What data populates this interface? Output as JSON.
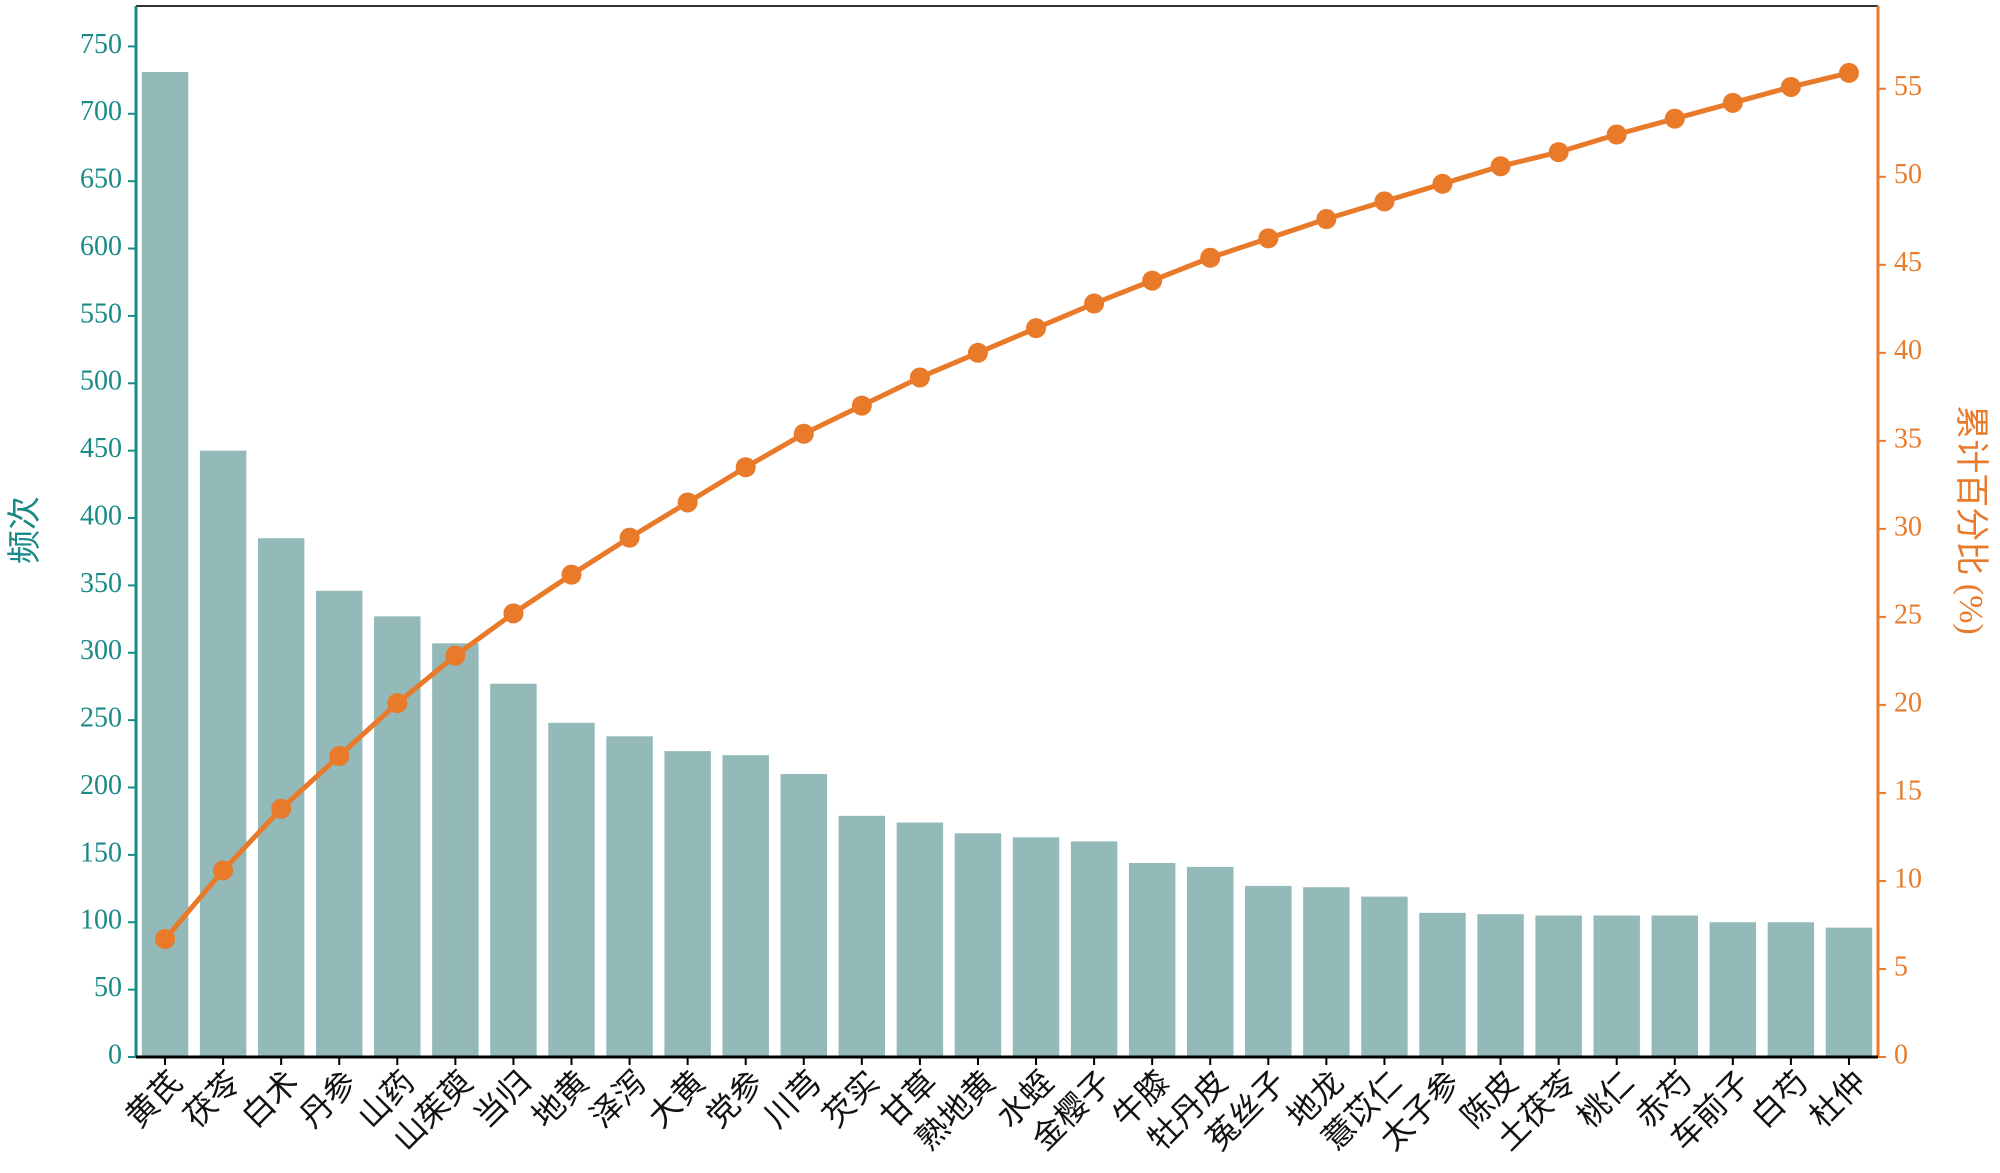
{
  "chart_data": {
    "type": "bar_line",
    "ylabel": "频次",
    "y2label": "累计百分比 (%)",
    "categories": [
      "黄芪",
      "茯苓",
      "白术",
      "丹参",
      "山药",
      "山茱萸",
      "当归",
      "地黄",
      "泽泻",
      "大黄",
      "党参",
      "川芎",
      "芡实",
      "甘草",
      "熟地黄",
      "水蛭",
      "金樱子",
      "牛膝",
      "牡丹皮",
      "菟丝子",
      "地龙",
      "薏苡仁",
      "太子参",
      "陈皮",
      "土茯苓",
      "桃仁",
      "赤芍",
      "车前子",
      "白芍",
      "杜仲"
    ],
    "series": [
      {
        "type": "bar",
        "color": "#93b9b9",
        "values": [
          731,
          450,
          385,
          346,
          327,
          307,
          277,
          248,
          238,
          227,
          224,
          210,
          179,
          174,
          166,
          163,
          160,
          144,
          141,
          127,
          126,
          119,
          107,
          106,
          105,
          105,
          105,
          100,
          100,
          96
        ]
      },
      {
        "type": "line",
        "axis": "y2",
        "color": "#e87a2a",
        "values": [
          6.7,
          10.6,
          14.1,
          17.1,
          20.1,
          22.8,
          25.2,
          27.4,
          29.5,
          31.5,
          33.5,
          35.4,
          37.0,
          38.6,
          40.0,
          41.4,
          42.8,
          44.1,
          45.4,
          46.5,
          47.6,
          48.6,
          49.6,
          50.6,
          51.4,
          52.4,
          53.3,
          54.2,
          55.1,
          55.9
        ]
      }
    ],
    "ylim": [
      0,
      780
    ],
    "yticks": [
      0,
      50,
      100,
      150,
      200,
      250,
      300,
      350,
      400,
      450,
      500,
      550,
      600,
      650,
      700,
      750
    ],
    "y2lim": [
      0,
      59.7
    ],
    "y2ticks": [
      0,
      5,
      10,
      15,
      20,
      25,
      30,
      35,
      40,
      45,
      50,
      55
    ],
    "ycolor": "#1a8a87",
    "y2color": "#e87a2a"
  }
}
